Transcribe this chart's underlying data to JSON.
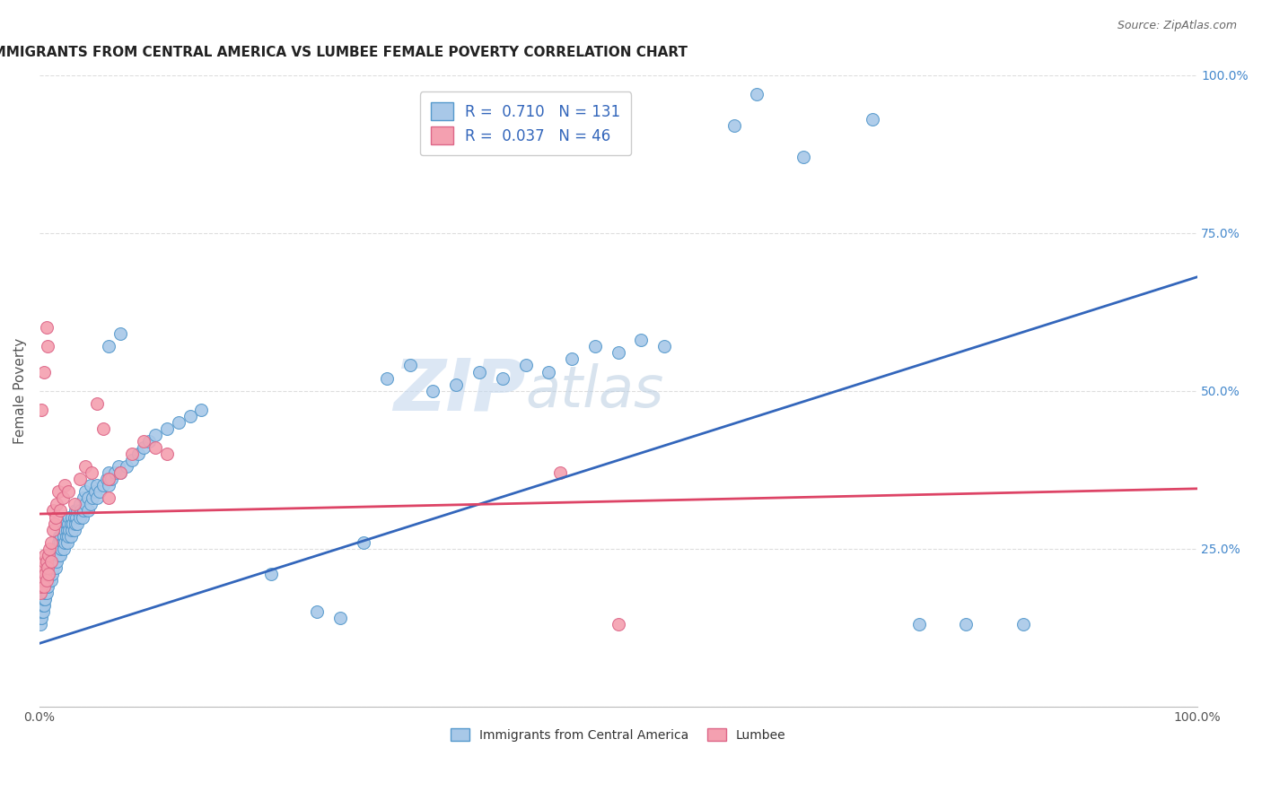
{
  "title": "IMMIGRANTS FROM CENTRAL AMERICA VS LUMBEE FEMALE POVERTY CORRELATION CHART",
  "source": "Source: ZipAtlas.com",
  "ylabel": "Female Poverty",
  "watermark_zip": "ZIP",
  "watermark_atlas": "atlas",
  "blue_R": "0.710",
  "blue_N": "131",
  "pink_R": "0.037",
  "pink_N": "46",
  "legend_label_blue": "Immigrants from Central America",
  "legend_label_pink": "Lumbee",
  "blue_color": "#a8c8e8",
  "pink_color": "#f4a0b0",
  "blue_edge_color": "#5599cc",
  "pink_edge_color": "#dd6688",
  "blue_line_color": "#3366bb",
  "pink_line_color": "#dd4466",
  "background_color": "#ffffff",
  "grid_color": "#dddddd",
  "blue_scatter": [
    [
      0.001,
      0.13
    ],
    [
      0.001,
      0.14
    ],
    [
      0.001,
      0.15
    ],
    [
      0.001,
      0.16
    ],
    [
      0.002,
      0.14
    ],
    [
      0.002,
      0.15
    ],
    [
      0.002,
      0.16
    ],
    [
      0.002,
      0.17
    ],
    [
      0.002,
      0.18
    ],
    [
      0.003,
      0.15
    ],
    [
      0.003,
      0.16
    ],
    [
      0.003,
      0.17
    ],
    [
      0.003,
      0.18
    ],
    [
      0.003,
      0.19
    ],
    [
      0.004,
      0.16
    ],
    [
      0.004,
      0.17
    ],
    [
      0.004,
      0.18
    ],
    [
      0.004,
      0.19
    ],
    [
      0.004,
      0.2
    ],
    [
      0.005,
      0.17
    ],
    [
      0.005,
      0.18
    ],
    [
      0.005,
      0.19
    ],
    [
      0.005,
      0.2
    ],
    [
      0.006,
      0.18
    ],
    [
      0.006,
      0.19
    ],
    [
      0.006,
      0.2
    ],
    [
      0.006,
      0.21
    ],
    [
      0.007,
      0.19
    ],
    [
      0.007,
      0.2
    ],
    [
      0.007,
      0.21
    ],
    [
      0.008,
      0.2
    ],
    [
      0.008,
      0.21
    ],
    [
      0.008,
      0.22
    ],
    [
      0.009,
      0.21
    ],
    [
      0.009,
      0.22
    ],
    [
      0.01,
      0.2
    ],
    [
      0.01,
      0.22
    ],
    [
      0.01,
      0.23
    ],
    [
      0.011,
      0.21
    ],
    [
      0.011,
      0.23
    ],
    [
      0.012,
      0.22
    ],
    [
      0.012,
      0.24
    ],
    [
      0.013,
      0.23
    ],
    [
      0.013,
      0.25
    ],
    [
      0.014,
      0.22
    ],
    [
      0.014,
      0.24
    ],
    [
      0.015,
      0.23
    ],
    [
      0.015,
      0.25
    ],
    [
      0.016,
      0.24
    ],
    [
      0.016,
      0.26
    ],
    [
      0.017,
      0.25
    ],
    [
      0.017,
      0.27
    ],
    [
      0.018,
      0.24
    ],
    [
      0.018,
      0.26
    ],
    [
      0.019,
      0.25
    ],
    [
      0.019,
      0.27
    ],
    [
      0.02,
      0.26
    ],
    [
      0.02,
      0.28
    ],
    [
      0.021,
      0.25
    ],
    [
      0.021,
      0.27
    ],
    [
      0.022,
      0.26
    ],
    [
      0.022,
      0.28
    ],
    [
      0.023,
      0.27
    ],
    [
      0.023,
      0.29
    ],
    [
      0.024,
      0.26
    ],
    [
      0.024,
      0.28
    ],
    [
      0.025,
      0.27
    ],
    [
      0.025,
      0.29
    ],
    [
      0.026,
      0.28
    ],
    [
      0.026,
      0.3
    ],
    [
      0.027,
      0.27
    ],
    [
      0.027,
      0.29
    ],
    [
      0.028,
      0.28
    ],
    [
      0.028,
      0.3
    ],
    [
      0.029,
      0.29
    ],
    [
      0.03,
      0.28
    ],
    [
      0.03,
      0.3
    ],
    [
      0.031,
      0.29
    ],
    [
      0.031,
      0.31
    ],
    [
      0.032,
      0.3
    ],
    [
      0.033,
      0.29
    ],
    [
      0.033,
      0.31
    ],
    [
      0.035,
      0.3
    ],
    [
      0.035,
      0.32
    ],
    [
      0.036,
      0.31
    ],
    [
      0.037,
      0.3
    ],
    [
      0.038,
      0.31
    ],
    [
      0.038,
      0.33
    ],
    [
      0.04,
      0.32
    ],
    [
      0.04,
      0.34
    ],
    [
      0.042,
      0.31
    ],
    [
      0.042,
      0.33
    ],
    [
      0.044,
      0.32
    ],
    [
      0.044,
      0.35
    ],
    [
      0.046,
      0.33
    ],
    [
      0.048,
      0.34
    ],
    [
      0.05,
      0.33
    ],
    [
      0.05,
      0.35
    ],
    [
      0.052,
      0.34
    ],
    [
      0.055,
      0.35
    ],
    [
      0.058,
      0.36
    ],
    [
      0.06,
      0.35
    ],
    [
      0.06,
      0.37
    ],
    [
      0.062,
      0.36
    ],
    [
      0.065,
      0.37
    ],
    [
      0.068,
      0.38
    ],
    [
      0.07,
      0.37
    ],
    [
      0.075,
      0.38
    ],
    [
      0.08,
      0.39
    ],
    [
      0.085,
      0.4
    ],
    [
      0.09,
      0.41
    ],
    [
      0.095,
      0.42
    ],
    [
      0.1,
      0.43
    ],
    [
      0.11,
      0.44
    ],
    [
      0.12,
      0.45
    ],
    [
      0.13,
      0.46
    ],
    [
      0.14,
      0.47
    ],
    [
      0.3,
      0.52
    ],
    [
      0.32,
      0.54
    ],
    [
      0.34,
      0.5
    ],
    [
      0.36,
      0.51
    ],
    [
      0.38,
      0.53
    ],
    [
      0.4,
      0.52
    ],
    [
      0.42,
      0.54
    ],
    [
      0.44,
      0.53
    ],
    [
      0.46,
      0.55
    ],
    [
      0.48,
      0.57
    ],
    [
      0.5,
      0.56
    ],
    [
      0.52,
      0.58
    ],
    [
      0.54,
      0.57
    ],
    [
      0.6,
      0.92
    ],
    [
      0.62,
      0.97
    ],
    [
      0.66,
      0.87
    ],
    [
      0.72,
      0.93
    ],
    [
      0.76,
      0.13
    ],
    [
      0.8,
      0.13
    ],
    [
      0.85,
      0.13
    ],
    [
      0.2,
      0.21
    ],
    [
      0.24,
      0.15
    ],
    [
      0.26,
      0.14
    ],
    [
      0.28,
      0.26
    ],
    [
      0.06,
      0.57
    ],
    [
      0.07,
      0.59
    ]
  ],
  "pink_scatter": [
    [
      0.001,
      0.18
    ],
    [
      0.002,
      0.19
    ],
    [
      0.002,
      0.21
    ],
    [
      0.003,
      0.2
    ],
    [
      0.003,
      0.22
    ],
    [
      0.004,
      0.19
    ],
    [
      0.004,
      0.23
    ],
    [
      0.005,
      0.21
    ],
    [
      0.005,
      0.24
    ],
    [
      0.006,
      0.2
    ],
    [
      0.006,
      0.23
    ],
    [
      0.007,
      0.22
    ],
    [
      0.008,
      0.21
    ],
    [
      0.008,
      0.24
    ],
    [
      0.009,
      0.25
    ],
    [
      0.01,
      0.23
    ],
    [
      0.01,
      0.26
    ],
    [
      0.012,
      0.28
    ],
    [
      0.012,
      0.31
    ],
    [
      0.013,
      0.29
    ],
    [
      0.014,
      0.3
    ],
    [
      0.015,
      0.32
    ],
    [
      0.016,
      0.34
    ],
    [
      0.018,
      0.31
    ],
    [
      0.02,
      0.33
    ],
    [
      0.022,
      0.35
    ],
    [
      0.025,
      0.34
    ],
    [
      0.03,
      0.32
    ],
    [
      0.035,
      0.36
    ],
    [
      0.04,
      0.38
    ],
    [
      0.045,
      0.37
    ],
    [
      0.05,
      0.48
    ],
    [
      0.055,
      0.44
    ],
    [
      0.06,
      0.36
    ],
    [
      0.06,
      0.33
    ],
    [
      0.07,
      0.37
    ],
    [
      0.08,
      0.4
    ],
    [
      0.09,
      0.42
    ],
    [
      0.1,
      0.41
    ],
    [
      0.11,
      0.4
    ],
    [
      0.002,
      0.47
    ],
    [
      0.004,
      0.53
    ],
    [
      0.006,
      0.6
    ],
    [
      0.007,
      0.57
    ],
    [
      0.45,
      0.37
    ],
    [
      0.5,
      0.13
    ]
  ],
  "blue_line_x": [
    0.0,
    1.0
  ],
  "blue_line_y": [
    0.1,
    0.68
  ],
  "pink_line_x": [
    0.0,
    1.0
  ],
  "pink_line_y": [
    0.305,
    0.345
  ],
  "xlim": [
    0.0,
    1.0
  ],
  "ylim": [
    0.0,
    1.0
  ],
  "xtick_positions": [
    0.0,
    0.25,
    0.5,
    0.75,
    1.0
  ],
  "ytick_positions": [
    0.0,
    0.25,
    0.5,
    0.75,
    1.0
  ],
  "ytick_labels_right": [
    "",
    "25.0%",
    "50.0%",
    "75.0%",
    "100.0%"
  ],
  "title_fontsize": 11,
  "source_fontsize": 9,
  "legend_fontsize": 12,
  "axis_label_color": "#555555",
  "right_tick_color": "#4488cc"
}
